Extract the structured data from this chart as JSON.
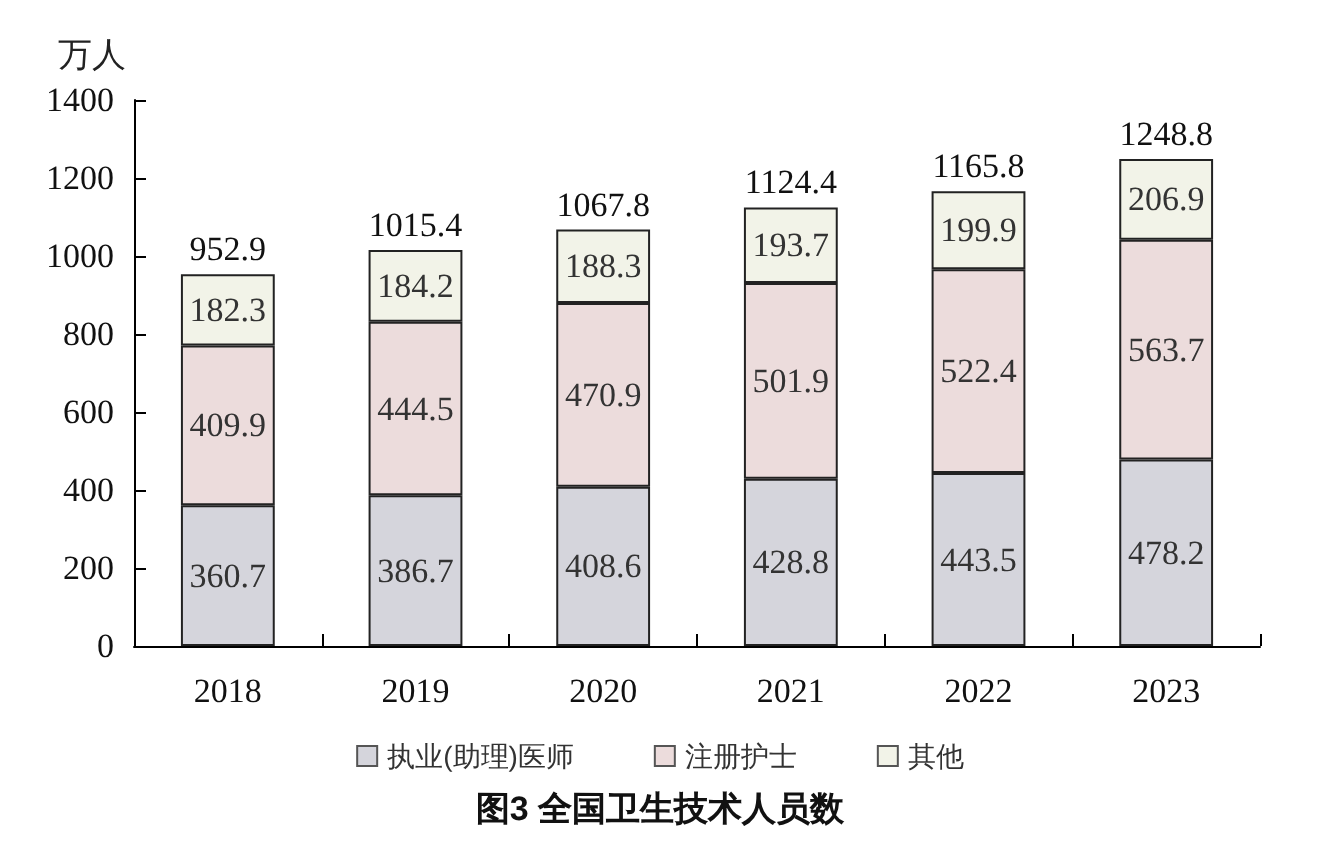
{
  "chart_data": {
    "type": "bar",
    "stacked": true,
    "title": "图3 全国卫生技术人员数",
    "ylabel": "万人",
    "categories": [
      "2018",
      "2019",
      "2020",
      "2021",
      "2022",
      "2023"
    ],
    "series": [
      {
        "name": "执业(助理)医师",
        "color": "#d5d5dc",
        "values": [
          360.7,
          386.7,
          408.6,
          428.8,
          443.5,
          478.2
        ]
      },
      {
        "name": "注册护士",
        "color": "#ecdcdc",
        "values": [
          409.9,
          444.5,
          470.9,
          501.9,
          522.4,
          563.7
        ]
      },
      {
        "name": "其他",
        "color": "#f2f3e8",
        "values": [
          182.3,
          184.2,
          188.3,
          193.7,
          199.9,
          206.9
        ]
      }
    ],
    "ylim": [
      0,
      1400
    ],
    "yticks": [
      0,
      200,
      400,
      600,
      800,
      1000,
      1200,
      1400
    ],
    "grid": false,
    "legend": "bottom",
    "data_labels": true,
    "totals": [
      "952.9",
      "1015.4",
      "1067.8",
      "1124.4",
      "1165.8",
      "1248.8"
    ]
  }
}
